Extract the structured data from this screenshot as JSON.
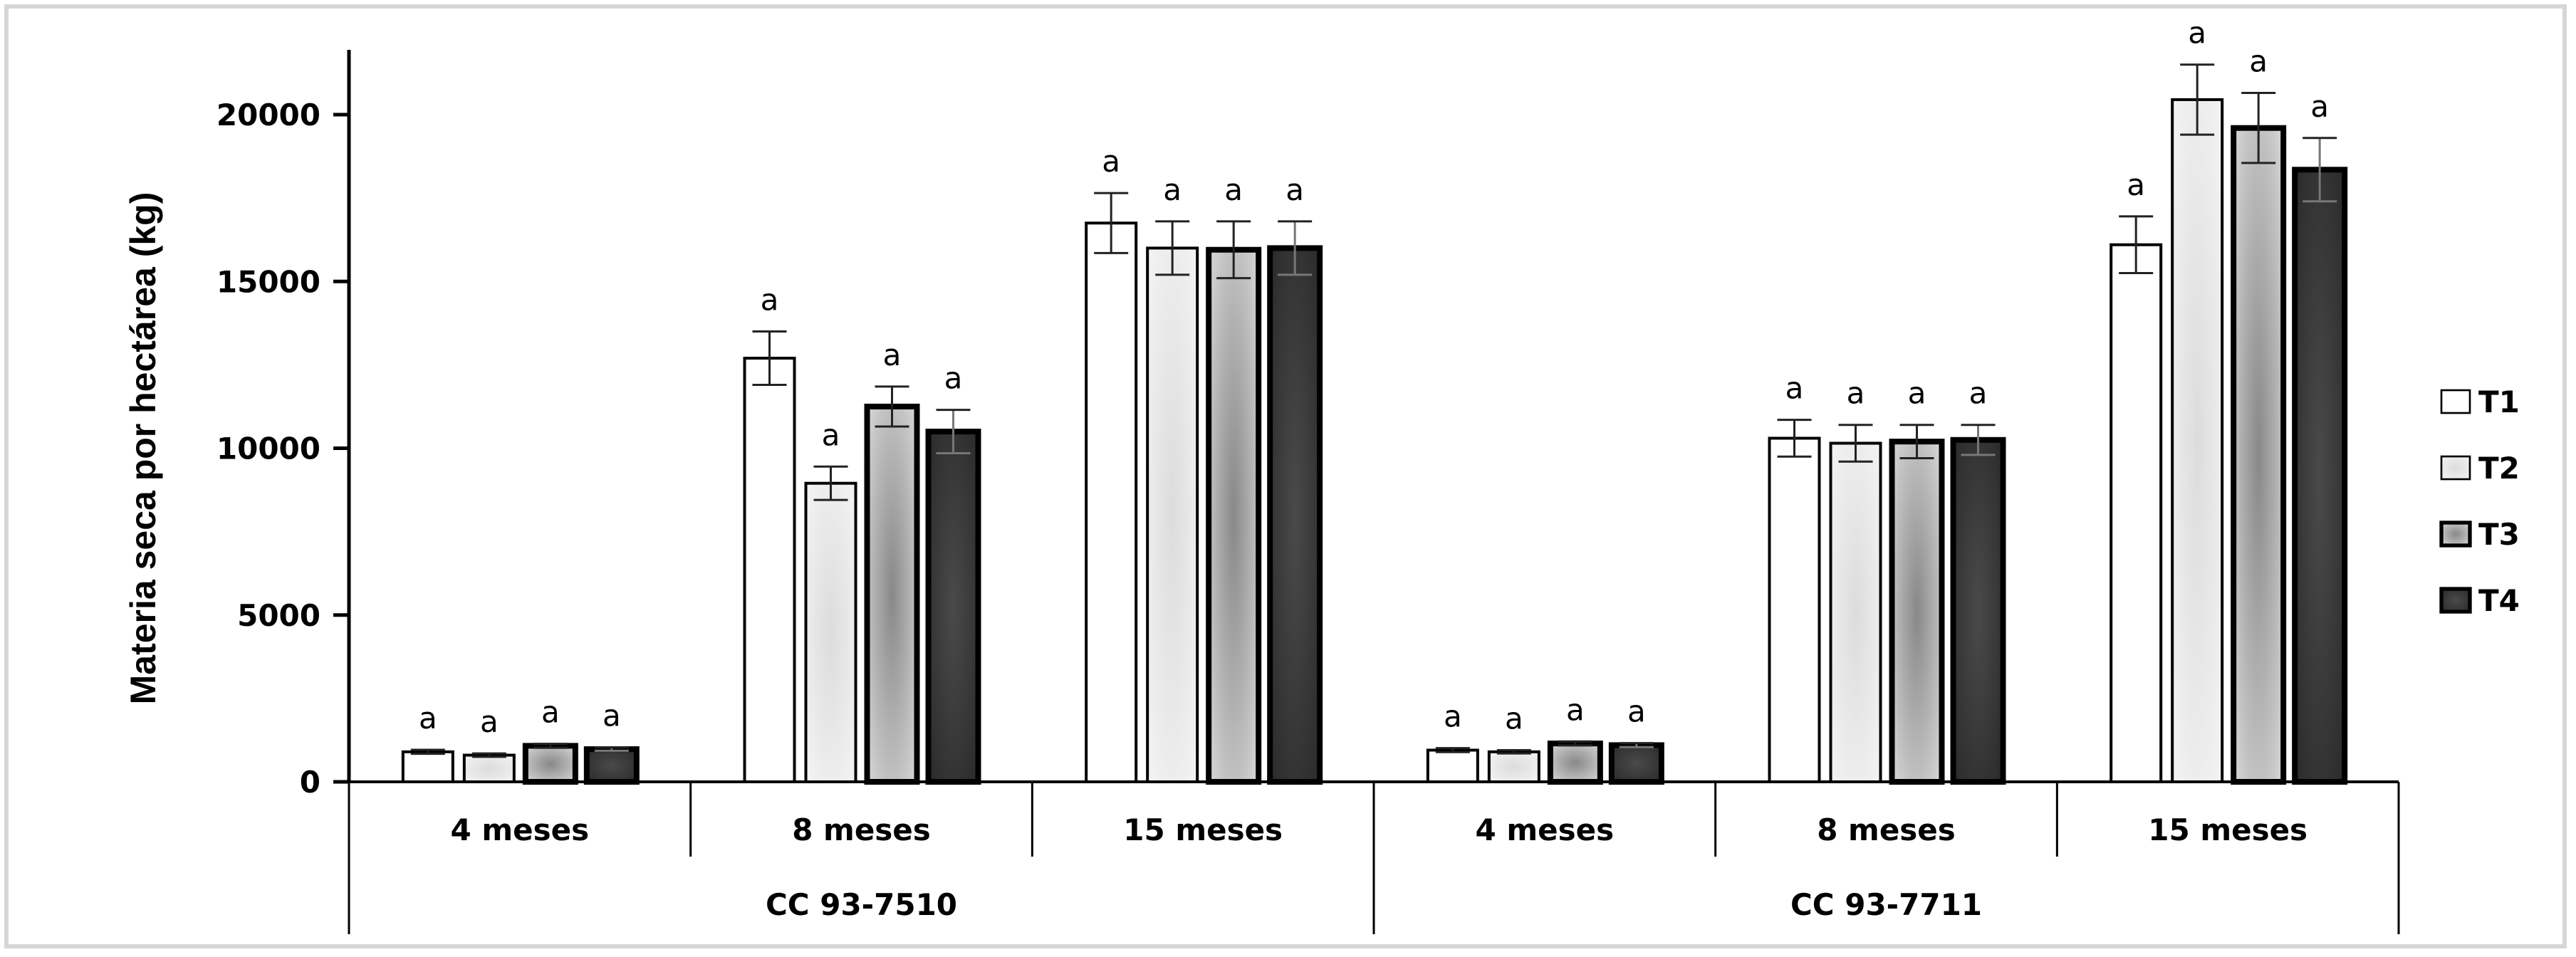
{
  "chart_data": {
    "type": "bar",
    "title": "",
    "xlabel": "",
    "ylabel": "Materia seca por hectárea (kg)",
    "ylim": [
      0,
      22000
    ],
    "yticks": [
      0,
      5000,
      10000,
      15000,
      20000
    ],
    "grid": false,
    "legend_position": "right",
    "groups": [
      {
        "name": "CC 93-7510",
        "categories": [
          "4 meses",
          "8 meses",
          "15 meses"
        ]
      },
      {
        "name": "CC 93-7711",
        "categories": [
          "4 meses",
          "8 meses",
          "15 meses"
        ]
      }
    ],
    "categories": [
      "CC 93-7510 / 4 meses",
      "CC 93-7510 / 8 meses",
      "CC 93-7510 / 15 meses",
      "CC 93-7711 / 4 meses",
      "CC 93-7711 / 8 meses",
      "CC 93-7711 / 15 meses"
    ],
    "series": [
      {
        "name": "T1",
        "fill": "#ffffff",
        "values": [
          900,
          12700,
          16750,
          950,
          10300,
          16100
        ],
        "errors": [
          60,
          800,
          900,
          60,
          550,
          850
        ],
        "letters": [
          "a",
          "a",
          "a",
          "a",
          "a",
          "a"
        ]
      },
      {
        "name": "T2",
        "fill": "#e6e6e6",
        "values": [
          800,
          8950,
          16000,
          900,
          10150,
          20450
        ],
        "errors": [
          50,
          500,
          800,
          50,
          550,
          1050
        ],
        "letters": [
          "a",
          "a",
          "a",
          "a",
          "a",
          "a"
        ]
      },
      {
        "name": "T3",
        "fill": "#a8a8a8",
        "values": [
          1080,
          11250,
          15950,
          1150,
          10200,
          19600
        ],
        "errors": [
          60,
          600,
          850,
          60,
          500,
          1050
        ],
        "letters": [
          "a",
          "a",
          "a",
          "a",
          "a",
          "a"
        ]
      },
      {
        "name": "T4",
        "fill": "#404040",
        "values": [
          980,
          10500,
          16000,
          1100,
          10250,
          18350
        ],
        "errors": [
          50,
          650,
          800,
          60,
          450,
          950
        ],
        "letters": [
          "a",
          "a",
          "a",
          "a",
          "a",
          "a"
        ]
      }
    ]
  },
  "legend": [
    "T1",
    "T2",
    "T3",
    "T4"
  ],
  "axis": {
    "ylabel": "Materia seca por hectárea (kg)"
  }
}
